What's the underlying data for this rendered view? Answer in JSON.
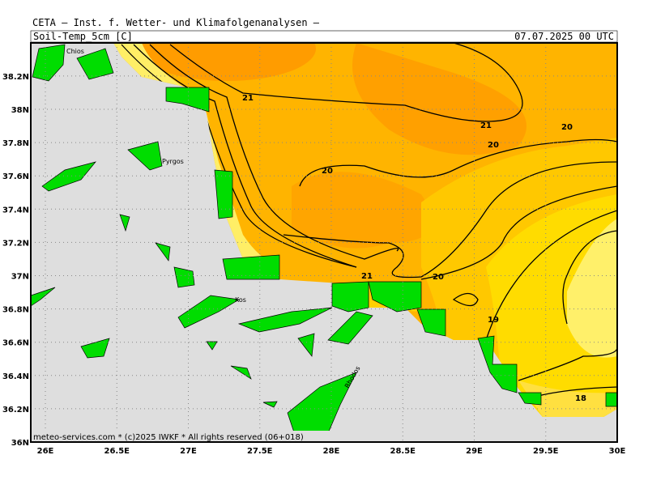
{
  "header": {
    "title": "CETA — Inst. f. Wetter- und Klimafolgenanalysen —",
    "field": "Soil-Temp_5cm [C]",
    "time": "07.07.2025 00 UTC"
  },
  "map": {
    "lat_ticks": [
      {
        "value": 38.2,
        "label": "38.2N"
      },
      {
        "value": 38,
        "label": "38N"
      },
      {
        "value": 37.8,
        "label": "37.8N"
      },
      {
        "value": 37.6,
        "label": "37.6N"
      },
      {
        "value": 37.4,
        "label": "37.4N"
      },
      {
        "value": 37.2,
        "label": "37.2N"
      },
      {
        "value": 37,
        "label": "37N"
      },
      {
        "value": 36.8,
        "label": "36.8N"
      },
      {
        "value": 36.6,
        "label": "36.6N"
      },
      {
        "value": 36.4,
        "label": "36.4N"
      },
      {
        "value": 36.2,
        "label": "36.2N"
      },
      {
        "value": 36,
        "label": "36N"
      }
    ],
    "lon_ticks": [
      {
        "value": 26,
        "label": "26E"
      },
      {
        "value": 26.5,
        "label": "26.5E"
      },
      {
        "value": 27,
        "label": "27E"
      },
      {
        "value": 27.5,
        "label": "27.5E"
      },
      {
        "value": 28,
        "label": "28E"
      },
      {
        "value": 28.5,
        "label": "28.5E"
      },
      {
        "value": 29,
        "label": "29E"
      },
      {
        "value": 29.5,
        "label": "29.5E"
      },
      {
        "value": 30,
        "label": "30E"
      }
    ],
    "contour_labels": [
      "21",
      "21",
      "20",
      "20",
      "20",
      "21",
      "20",
      "19",
      "18"
    ],
    "places": [
      "Chios",
      "Pyrgos",
      "Kos",
      "Rhodos"
    ]
  },
  "footer": "meteo-services.com * (c)2025 IWKF * All rights reserved (06+018)"
}
